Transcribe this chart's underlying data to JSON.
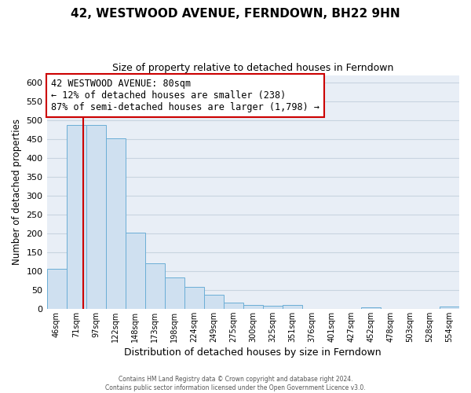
{
  "title": "42, WESTWOOD AVENUE, FERNDOWN, BH22 9HN",
  "subtitle": "Size of property relative to detached houses in Ferndown",
  "xlabel": "Distribution of detached houses by size in Ferndown",
  "ylabel": "Number of detached properties",
  "bar_labels": [
    "46sqm",
    "71sqm",
    "97sqm",
    "122sqm",
    "148sqm",
    "173sqm",
    "198sqm",
    "224sqm",
    "249sqm",
    "275sqm",
    "300sqm",
    "325sqm",
    "351sqm",
    "376sqm",
    "401sqm",
    "427sqm",
    "452sqm",
    "478sqm",
    "503sqm",
    "528sqm",
    "554sqm"
  ],
  "bar_values": [
    105,
    488,
    487,
    452,
    202,
    120,
    82,
    57,
    37,
    16,
    10,
    7,
    10,
    0,
    0,
    0,
    3,
    0,
    0,
    0,
    5
  ],
  "bar_color": "#cfe0f0",
  "bar_edge_color": "#6baed6",
  "background_color": "#e8eef6",
  "grid_color": "#c8d4e0",
  "annotation_line0": "42 WESTWOOD AVENUE: 80sqm",
  "annotation_line1": "← 12% of detached houses are smaller (238)",
  "annotation_line2": "87% of semi-detached houses are larger (1,798) →",
  "box_facecolor": "#ffffff",
  "box_edgecolor": "#cc0000",
  "marker_line_color": "#cc0000",
  "ylim": [
    0,
    620
  ],
  "yticks": [
    0,
    50,
    100,
    150,
    200,
    250,
    300,
    350,
    400,
    450,
    500,
    550,
    600
  ],
  "figure_facecolor": "#ffffff",
  "footer_line1": "Contains HM Land Registry data © Crown copyright and database right 2024.",
  "footer_line2": "Contains public sector information licensed under the Open Government Licence v3.0."
}
